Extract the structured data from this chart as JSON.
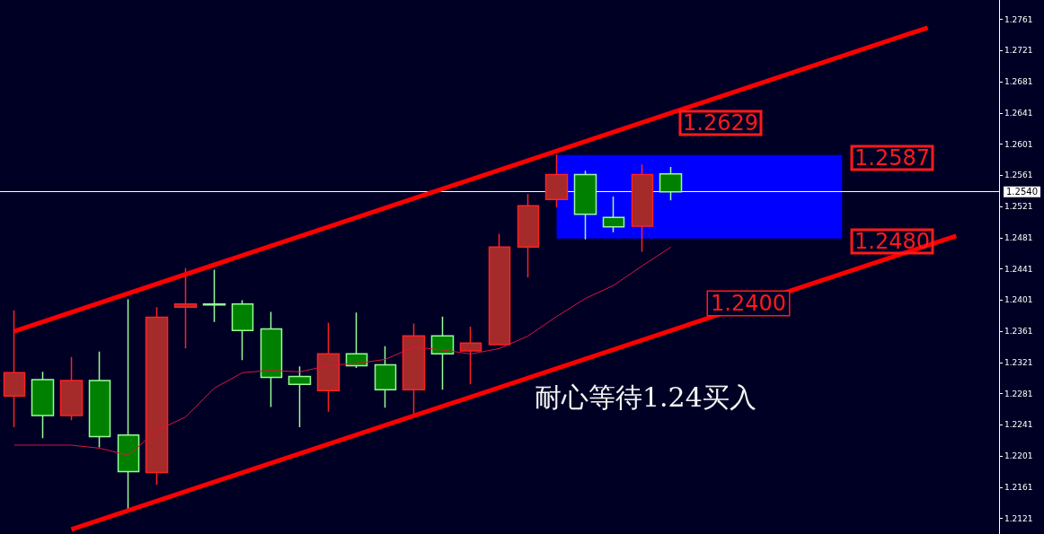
{
  "chart_data": {
    "type": "candlestick",
    "categories": [
      null,
      null,
      null,
      null,
      null,
      null,
      null,
      null,
      null,
      null,
      null,
      null,
      null,
      null,
      null,
      null,
      null,
      null,
      null,
      null,
      null,
      null,
      null,
      null
    ],
    "ohlc": [
      [
        1.2278,
        1.2388,
        1.2238,
        1.2308
      ],
      [
        1.2299,
        1.2309,
        1.2224,
        1.2253
      ],
      [
        1.2253,
        1.2328,
        1.2247,
        1.2298
      ],
      [
        1.2298,
        1.2335,
        1.2212,
        1.2226
      ],
      [
        1.2228,
        1.2402,
        1.2131,
        1.2181
      ],
      [
        1.218,
        1.2392,
        1.2164,
        1.2379
      ],
      [
        1.2392,
        1.2442,
        1.2339,
        1.2396
      ],
      [
        1.2396,
        1.244,
        1.2373,
        1.2395
      ],
      [
        1.2396,
        1.2401,
        1.2324,
        1.2362
      ],
      [
        1.2364,
        1.2386,
        1.2264,
        1.2302
      ],
      [
        1.2303,
        1.2316,
        1.2238,
        1.2293
      ],
      [
        1.2285,
        1.2372,
        1.2258,
        1.2332
      ],
      [
        1.2332,
        1.2385,
        1.2314,
        1.2317
      ],
      [
        1.2318,
        1.2342,
        1.2263,
        1.2286
      ],
      [
        1.2286,
        1.2371,
        1.2255,
        1.2355
      ],
      [
        1.2355,
        1.238,
        1.2286,
        1.2332
      ],
      [
        1.2336,
        1.2367,
        1.2293,
        1.2346
      ],
      [
        1.2344,
        1.2486,
        1.2344,
        1.2469
      ],
      [
        1.2469,
        1.2537,
        1.243,
        1.2522
      ],
      [
        1.253,
        1.2588,
        1.252,
        1.2562
      ],
      [
        1.2562,
        1.2567,
        1.2479,
        1.2511
      ],
      [
        1.2507,
        1.2534,
        1.2488,
        1.2495
      ],
      [
        1.2496,
        1.2575,
        1.2463,
        1.2562
      ],
      [
        1.2563,
        1.2572,
        1.2529,
        1.254
      ]
    ],
    "colors": [
      "#a52a2a",
      "#008000",
      "#a52a2a",
      "#008000",
      "#008000",
      "#a52a2a",
      "#a52a2a",
      "#008000",
      "#008000",
      "#008000",
      "#008000",
      "#a52a2a",
      "#008000",
      "#008000",
      "#a52a2a",
      "#008000",
      "#a52a2a",
      "#a52a2a",
      "#a52a2a",
      "#a52a2a",
      "#008000",
      "#008000",
      "#a52a2a",
      "#008000"
    ],
    "series": [
      {
        "type": "line",
        "color": "#dc143c",
        "values": [
          1.2215,
          1.2215,
          1.2215,
          1.2211,
          1.2202,
          1.2234,
          1.2251,
          1.2288,
          1.2308,
          1.2311,
          1.2309,
          1.2317,
          1.232,
          1.2325,
          1.2341,
          1.2337,
          1.2332,
          1.2339,
          1.2355,
          1.238,
          1.2403,
          1.242,
          1.2445,
          1.2469
        ]
      },
      {
        "type": "line",
        "color": "#ff0000",
        "values": [
          1.2361,
          null,
          null,
          null,
          null,
          null,
          null,
          null,
          null,
          null,
          null,
          null,
          null,
          null,
          null,
          null,
          null,
          null,
          null,
          null,
          null,
          null,
          null,
          1.2641
        ]
      },
      {
        "type": "line",
        "color": "#ff0000",
        "values": [
          null,
          null,
          1.2107,
          null,
          null,
          null,
          null,
          null,
          null,
          null,
          null,
          null,
          null,
          null,
          null,
          null,
          null,
          null,
          null,
          null,
          null,
          null,
          null,
          1.2362
        ]
      }
    ],
    "ylim": [
      1.2101,
      1.2786
    ],
    "yticks": [
      1.2121,
      1.2161,
      1.2201,
      1.2241,
      1.2281,
      1.2321,
      1.2361,
      1.2401,
      1.2441,
      1.2481,
      1.2521,
      1.2561,
      1.2601,
      1.2641,
      1.2681,
      1.2721,
      1.2761
    ],
    "ref_lines": [
      {
        "axis": "y",
        "value": 1.254,
        "label": "1.2540",
        "color": "#ffffff"
      }
    ],
    "bands": [
      {
        "axis": "y",
        "from": 1.248,
        "to": 1.2587,
        "color": "#0000ff"
      }
    ],
    "annotations": [
      "1.2629",
      "1.2587",
      "1.2480",
      "1.2400",
      "耐心等待1.24买入"
    ],
    "tick_labels": "y"
  }
}
